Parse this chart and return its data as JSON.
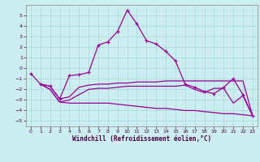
{
  "xlabel": "Windchill (Refroidissement éolien,°C)",
  "background_color": "#cceef0",
  "grid_color": "#aadddd",
  "line_color": "#990099",
  "xlim": [
    -0.5,
    23.5
  ],
  "ylim": [
    -5.5,
    6.0
  ],
  "yticks": [
    -5,
    -4,
    -3,
    -2,
    -1,
    0,
    1,
    2,
    3,
    4,
    5
  ],
  "xticks": [
    0,
    1,
    2,
    3,
    4,
    5,
    6,
    7,
    8,
    9,
    10,
    11,
    12,
    13,
    14,
    15,
    16,
    17,
    18,
    19,
    20,
    21,
    22,
    23
  ],
  "line1_x": [
    0,
    1,
    2,
    3,
    4,
    5,
    6,
    7,
    8,
    9,
    10,
    11,
    12,
    13,
    14,
    15,
    16,
    17,
    18,
    19,
    20,
    21,
    22,
    23
  ],
  "line1_y": [
    -0.5,
    -1.5,
    -1.7,
    -2.9,
    -0.7,
    -0.6,
    -0.4,
    2.2,
    2.5,
    3.5,
    5.5,
    4.2,
    2.6,
    2.3,
    1.6,
    0.7,
    -1.5,
    -1.8,
    -2.2,
    -2.4,
    -1.8,
    -1.0,
    -2.5,
    -4.5
  ],
  "line2_x": [
    1,
    2,
    3,
    4,
    5,
    6,
    7,
    8,
    9,
    10,
    11,
    12,
    13,
    14,
    15,
    16,
    17,
    18,
    19,
    20,
    21,
    22,
    23
  ],
  "line2_y": [
    -1.5,
    -1.7,
    -2.9,
    -2.7,
    -1.8,
    -1.6,
    -1.5,
    -1.5,
    -1.4,
    -1.4,
    -1.3,
    -1.3,
    -1.3,
    -1.2,
    -1.2,
    -1.2,
    -1.2,
    -1.2,
    -1.2,
    -1.2,
    -1.2,
    -1.2,
    -4.5
  ],
  "line3_x": [
    1,
    2,
    3,
    4,
    5,
    6,
    7,
    8,
    9,
    10,
    11,
    12,
    13,
    14,
    15,
    16,
    17,
    18,
    19,
    20,
    21,
    22,
    23
  ],
  "line3_y": [
    -1.5,
    -2.0,
    -3.2,
    -3.0,
    -2.5,
    -2.0,
    -1.9,
    -1.9,
    -1.8,
    -1.7,
    -1.7,
    -1.7,
    -1.7,
    -1.7,
    -1.7,
    -1.6,
    -2.0,
    -2.3,
    -1.9,
    -1.9,
    -3.3,
    -2.6,
    -4.5
  ],
  "line4_x": [
    1,
    2,
    3,
    4,
    5,
    6,
    7,
    8,
    9,
    10,
    11,
    12,
    13,
    14,
    15,
    16,
    17,
    18,
    19,
    20,
    21,
    22,
    23
  ],
  "line4_y": [
    -1.5,
    -2.0,
    -3.2,
    -3.3,
    -3.3,
    -3.3,
    -3.3,
    -3.3,
    -3.4,
    -3.5,
    -3.6,
    -3.7,
    -3.8,
    -3.8,
    -3.9,
    -4.0,
    -4.0,
    -4.1,
    -4.2,
    -4.3,
    -4.3,
    -4.4,
    -4.5
  ]
}
